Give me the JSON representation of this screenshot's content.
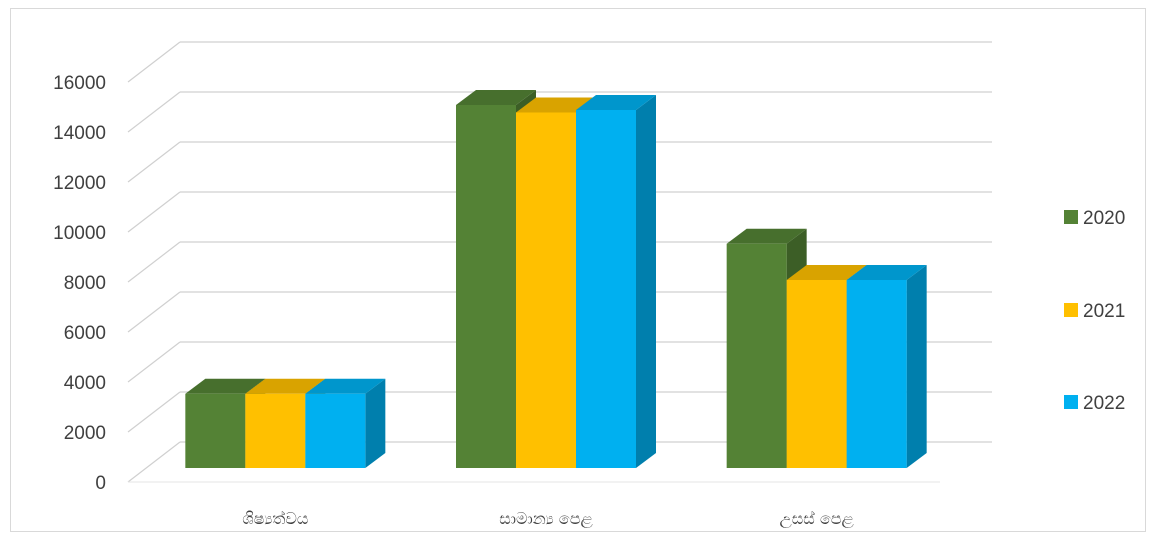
{
  "chart_data": {
    "type": "bar",
    "categories": [
      "ශිෂ්‍යත්වය",
      "සාමාන්‍ය පෙළ",
      "උසස් පෙළ"
    ],
    "series": [
      {
        "name": "2020",
        "values": [
          3850,
          15400,
          9850
        ],
        "color": "#548235"
      },
      {
        "name": "2021",
        "values": [
          3850,
          15100,
          8400
        ],
        "color": "#ffc000"
      },
      {
        "name": "2022",
        "values": [
          3850,
          15200,
          8400
        ],
        "color": "#00b0f0"
      }
    ],
    "ylim": [
      0,
      16000
    ],
    "yticks": [
      "0",
      "2000",
      "4000",
      "6000",
      "8000",
      "10000",
      "12000",
      "14000",
      "16000"
    ],
    "grid": true,
    "legend": "right",
    "style": "3d-clustered-column"
  }
}
